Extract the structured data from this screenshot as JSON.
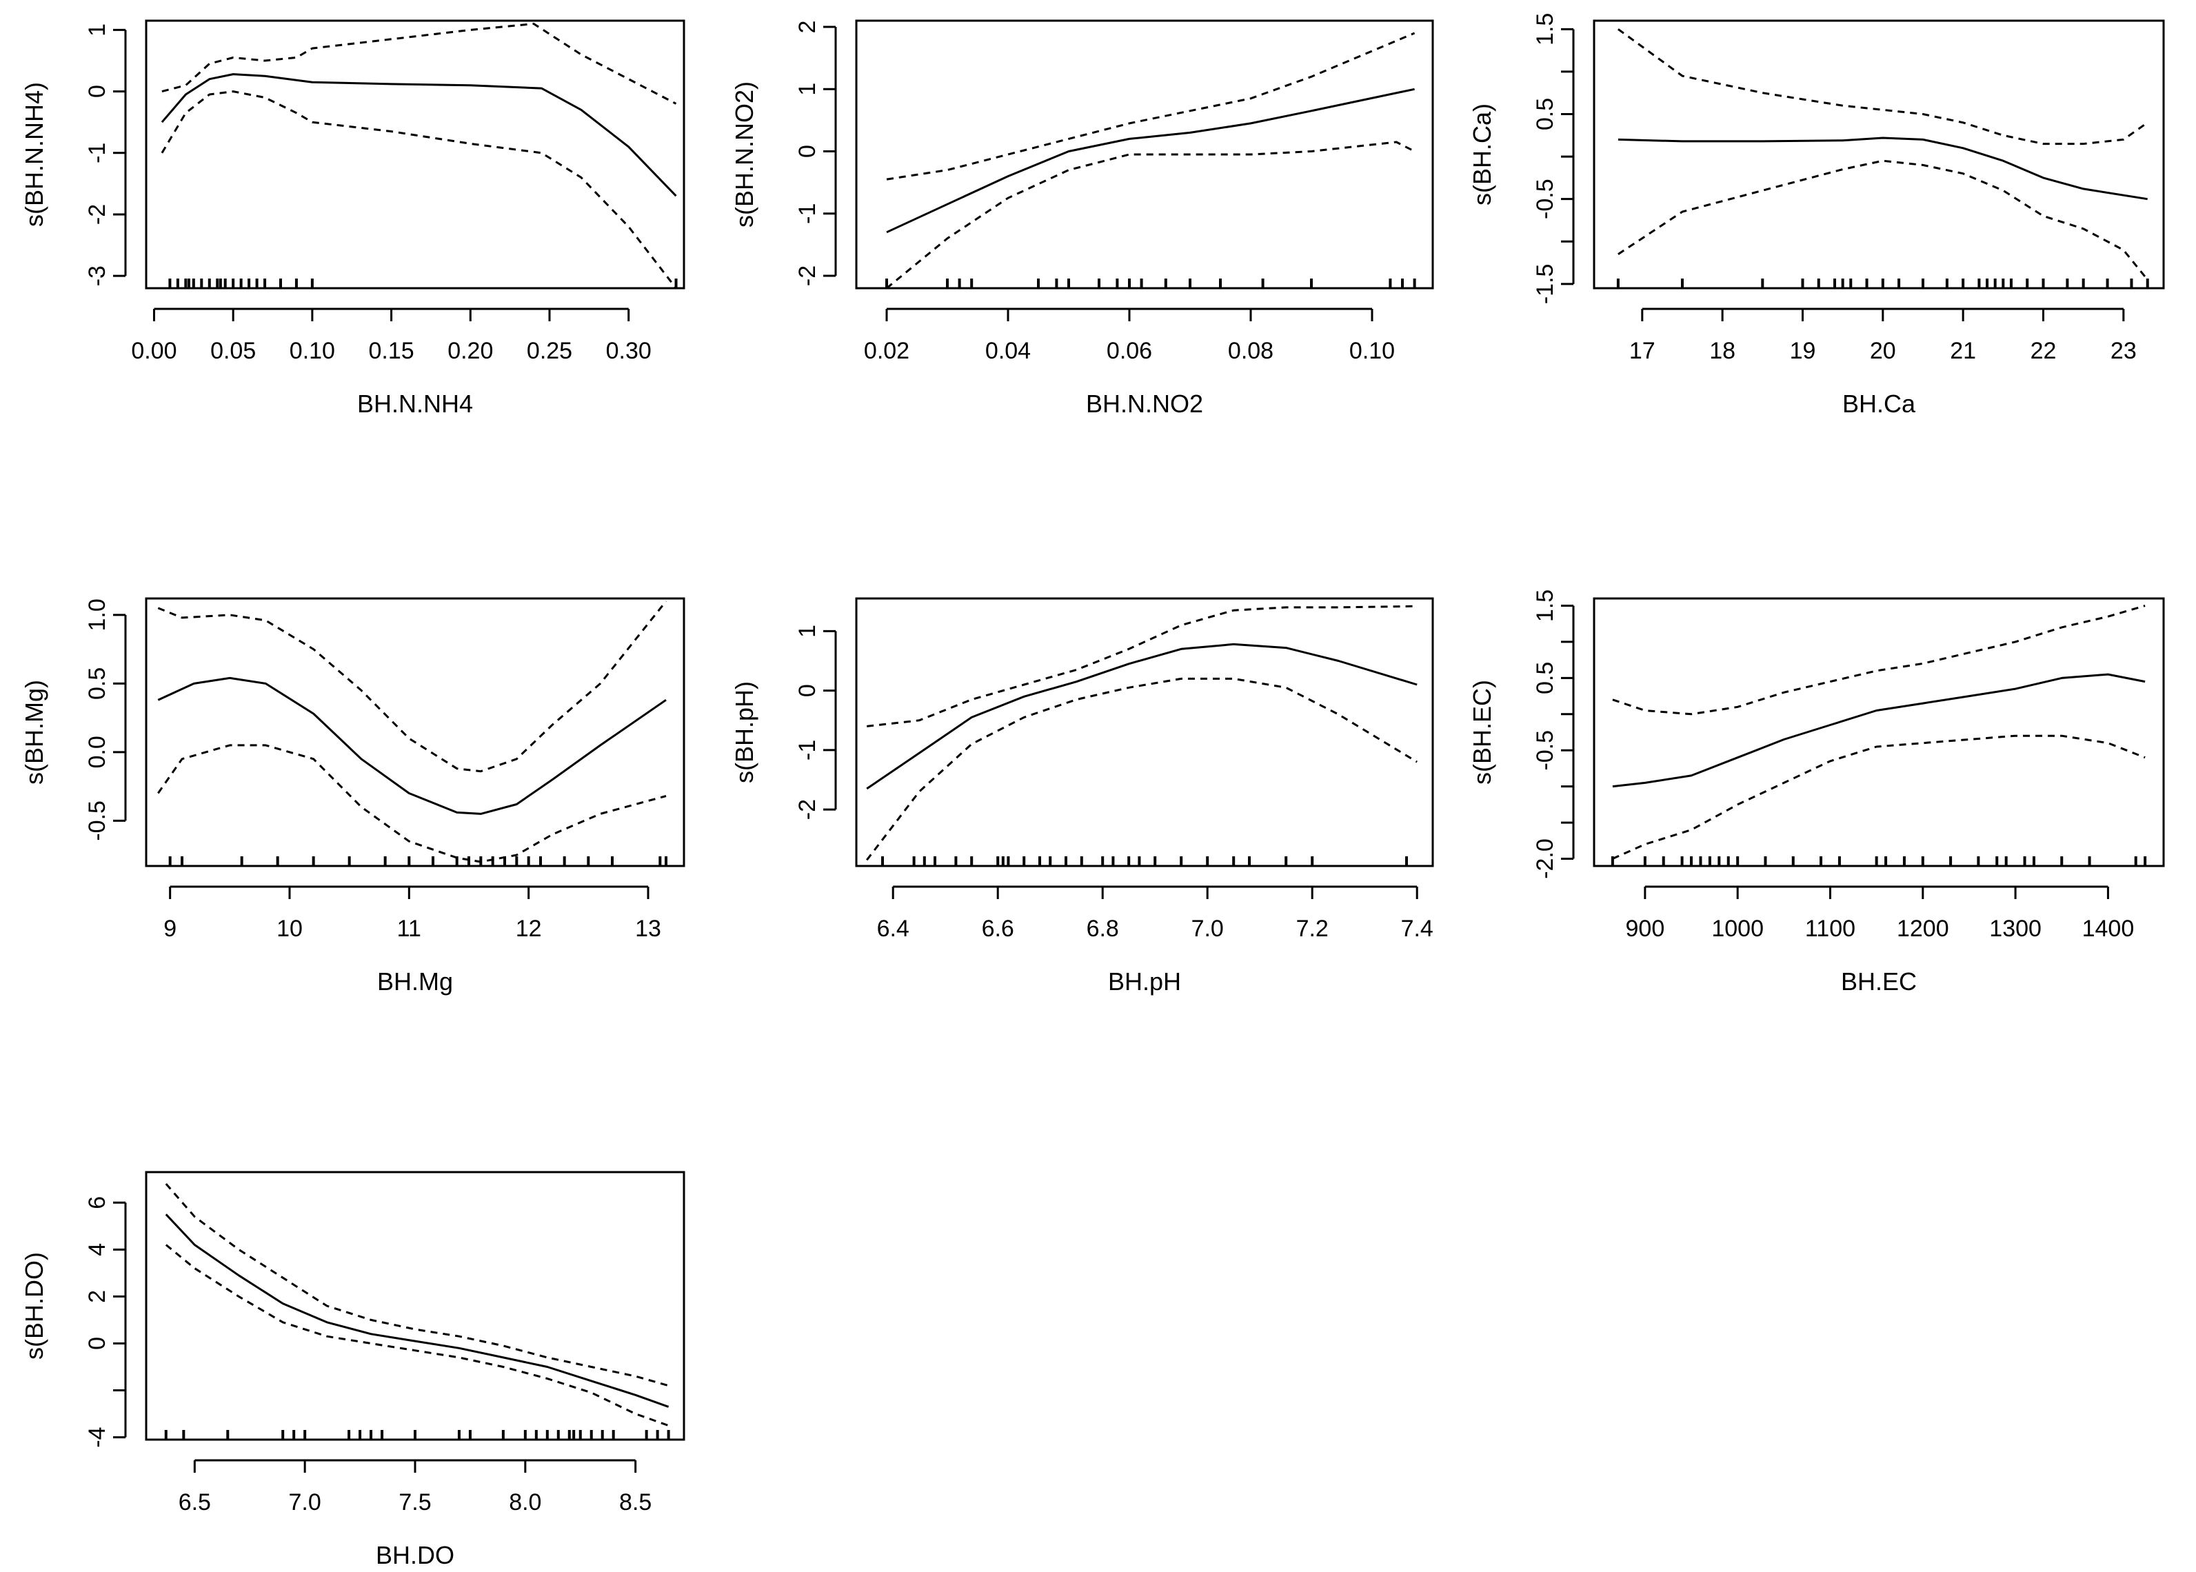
{
  "chart_data": [
    {
      "type": "line",
      "xlabel": "BH.N.NH4",
      "ylabel": "s(BH.N.NH4)",
      "xlim": [
        -0.005,
        0.335
      ],
      "ylim": [
        -3.2,
        1.15
      ],
      "xticks": [
        0.0,
        0.05,
        0.1,
        0.15,
        0.2,
        0.25,
        0.3
      ],
      "xtick_labels": [
        "0.00",
        "0.05",
        "0.10",
        "0.15",
        "0.20",
        "0.25",
        "0.30"
      ],
      "yticks": [
        -3,
        -2,
        -1,
        0,
        1
      ],
      "ytick_labels": [
        "-3",
        "-2",
        "-1",
        "0",
        "1"
      ],
      "series": [
        {
          "name": "fit",
          "style": "solid",
          "x": [
            0.005,
            0.02,
            0.035,
            0.05,
            0.07,
            0.1,
            0.15,
            0.2,
            0.245,
            0.27,
            0.3,
            0.33
          ],
          "y": [
            -0.5,
            -0.05,
            0.2,
            0.28,
            0.25,
            0.15,
            0.12,
            0.1,
            0.05,
            -0.3,
            -0.9,
            -1.7
          ]
        },
        {
          "name": "upper",
          "style": "dashed",
          "x": [
            0.005,
            0.02,
            0.035,
            0.05,
            0.07,
            0.09,
            0.1,
            0.15,
            0.2,
            0.24,
            0.27,
            0.3,
            0.33
          ],
          "y": [
            0.0,
            0.1,
            0.45,
            0.55,
            0.5,
            0.55,
            0.7,
            0.85,
            1.0,
            1.1,
            0.6,
            0.2,
            -0.2
          ]
        },
        {
          "name": "lower",
          "style": "dashed",
          "x": [
            0.005,
            0.02,
            0.035,
            0.05,
            0.07,
            0.09,
            0.1,
            0.15,
            0.2,
            0.245,
            0.27,
            0.3,
            0.33
          ],
          "y": [
            -1.0,
            -0.35,
            -0.05,
            0.0,
            -0.1,
            -0.35,
            -0.5,
            -0.65,
            -0.85,
            -1.0,
            -1.4,
            -2.2,
            -3.2
          ]
        }
      ],
      "rug": [
        0.01,
        0.015,
        0.02,
        0.022,
        0.025,
        0.03,
        0.035,
        0.04,
        0.042,
        0.045,
        0.05,
        0.055,
        0.06,
        0.065,
        0.07,
        0.08,
        0.09,
        0.1,
        0.33
      ]
    },
    {
      "type": "line",
      "xlabel": "BH.N.NO2",
      "ylabel": "s(BH.N.NO2)",
      "xlim": [
        0.015,
        0.11
      ],
      "ylim": [
        -2.2,
        2.1
      ],
      "xticks": [
        0.02,
        0.04,
        0.06,
        0.08,
        0.1
      ],
      "xtick_labels": [
        "0.02",
        "0.04",
        "0.06",
        "0.08",
        "0.10"
      ],
      "yticks": [
        -2,
        -1,
        0,
        1,
        2
      ],
      "ytick_labels": [
        "-2",
        "-1",
        "0",
        "1",
        "2"
      ],
      "series": [
        {
          "name": "fit",
          "style": "solid",
          "x": [
            0.02,
            0.03,
            0.04,
            0.05,
            0.06,
            0.07,
            0.08,
            0.09,
            0.107
          ],
          "y": [
            -1.3,
            -0.85,
            -0.4,
            0.0,
            0.2,
            0.3,
            0.45,
            0.65,
            1.0
          ]
        },
        {
          "name": "upper",
          "style": "dashed",
          "x": [
            0.02,
            0.03,
            0.04,
            0.05,
            0.06,
            0.07,
            0.08,
            0.09,
            0.107
          ],
          "y": [
            -0.45,
            -0.3,
            -0.05,
            0.2,
            0.45,
            0.65,
            0.85,
            1.2,
            1.9
          ]
        },
        {
          "name": "lower",
          "style": "dashed",
          "x": [
            0.02,
            0.03,
            0.04,
            0.05,
            0.06,
            0.07,
            0.08,
            0.09,
            0.104,
            0.107
          ],
          "y": [
            -2.2,
            -1.4,
            -0.75,
            -0.3,
            -0.05,
            -0.05,
            -0.05,
            0.0,
            0.15,
            0.0
          ]
        }
      ],
      "rug": [
        0.02,
        0.03,
        0.032,
        0.034,
        0.045,
        0.048,
        0.05,
        0.055,
        0.058,
        0.06,
        0.062,
        0.066,
        0.07,
        0.075,
        0.082,
        0.09,
        0.103,
        0.105,
        0.107
      ]
    },
    {
      "type": "line",
      "xlabel": "BH.Ca",
      "ylabel": "s(BH.Ca)",
      "xlim": [
        16.4,
        23.5
      ],
      "ylim": [
        -1.55,
        1.6
      ],
      "xticks": [
        17,
        18,
        19,
        20,
        21,
        22,
        23
      ],
      "xtick_labels": [
        "17",
        "18",
        "19",
        "20",
        "21",
        "22",
        "23"
      ],
      "yticks": [
        -1.5,
        -1.0,
        -0.5,
        0.0,
        0.5,
        1.0,
        1.5
      ],
      "ytick_labels": [
        "-1.5",
        "",
        "-0.5",
        "",
        "0.5",
        "",
        "1.5"
      ],
      "series": [
        {
          "name": "fit",
          "style": "solid",
          "x": [
            16.7,
            17.5,
            18.5,
            19.5,
            20.0,
            20.5,
            21.0,
            21.5,
            22.0,
            22.5,
            23.3
          ],
          "y": [
            0.2,
            0.18,
            0.18,
            0.19,
            0.22,
            0.2,
            0.1,
            -0.05,
            -0.25,
            -0.38,
            -0.5
          ]
        },
        {
          "name": "upper",
          "style": "dashed",
          "x": [
            16.7,
            17.5,
            18.5,
            19.5,
            20.0,
            20.5,
            21.0,
            21.5,
            22.0,
            22.5,
            23.0,
            23.3
          ],
          "y": [
            1.5,
            0.95,
            0.75,
            0.6,
            0.55,
            0.5,
            0.4,
            0.25,
            0.15,
            0.15,
            0.2,
            0.4
          ]
        },
        {
          "name": "lower",
          "style": "dashed",
          "x": [
            16.7,
            17.5,
            18.5,
            19.5,
            20.0,
            20.5,
            21.0,
            21.5,
            22.0,
            22.5,
            23.0,
            23.3
          ],
          "y": [
            -1.15,
            -0.65,
            -0.4,
            -0.15,
            -0.05,
            -0.1,
            -0.2,
            -0.4,
            -0.7,
            -0.85,
            -1.1,
            -1.45
          ]
        }
      ],
      "rug": [
        16.7,
        17.5,
        18.5,
        19.0,
        19.2,
        19.4,
        19.5,
        19.6,
        19.8,
        20.0,
        20.2,
        20.5,
        20.8,
        21.0,
        21.2,
        21.3,
        21.4,
        21.5,
        21.6,
        21.8,
        22.0,
        22.3,
        22.5,
        22.8,
        23.1,
        23.3
      ]
    },
    {
      "type": "line",
      "xlabel": "BH.Mg",
      "ylabel": "s(BH.Mg)",
      "xlim": [
        8.8,
        13.3
      ],
      "ylim": [
        -0.83,
        1.12
      ],
      "xticks": [
        9,
        10,
        11,
        12,
        13
      ],
      "xtick_labels": [
        "9",
        "10",
        "11",
        "12",
        "13"
      ],
      "yticks": [
        -0.5,
        0.0,
        0.5,
        1.0
      ],
      "ytick_labels": [
        "-0.5",
        "0.0",
        "0.5",
        "1.0"
      ],
      "series": [
        {
          "name": "fit",
          "style": "solid",
          "x": [
            8.9,
            9.2,
            9.5,
            9.8,
            10.2,
            10.6,
            11.0,
            11.4,
            11.6,
            11.9,
            12.2,
            12.6,
            13.15
          ],
          "y": [
            0.38,
            0.5,
            0.54,
            0.5,
            0.28,
            -0.05,
            -0.3,
            -0.44,
            -0.45,
            -0.38,
            -0.2,
            0.05,
            0.38
          ]
        },
        {
          "name": "upper",
          "style": "dashed",
          "x": [
            8.9,
            9.1,
            9.5,
            9.8,
            10.2,
            10.6,
            11.0,
            11.4,
            11.6,
            11.9,
            12.2,
            12.6,
            13.15
          ],
          "y": [
            1.05,
            0.98,
            1.0,
            0.96,
            0.75,
            0.45,
            0.1,
            -0.12,
            -0.14,
            -0.05,
            0.2,
            0.5,
            1.1
          ]
        },
        {
          "name": "lower",
          "style": "dashed",
          "x": [
            8.9,
            9.1,
            9.5,
            9.8,
            10.2,
            10.6,
            11.0,
            11.4,
            11.6,
            11.9,
            12.2,
            12.6,
            13.15
          ],
          "y": [
            -0.3,
            -0.05,
            0.05,
            0.05,
            -0.05,
            -0.4,
            -0.65,
            -0.77,
            -0.8,
            -0.75,
            -0.6,
            -0.45,
            -0.32
          ]
        }
      ],
      "rug": [
        9.0,
        9.1,
        9.6,
        9.9,
        10.2,
        10.5,
        10.8,
        11.0,
        11.2,
        11.4,
        11.5,
        11.6,
        11.7,
        11.8,
        11.9,
        12.0,
        12.1,
        12.3,
        12.5,
        12.7,
        13.1,
        13.15
      ]
    },
    {
      "type": "line",
      "xlabel": "BH.pH",
      "ylabel": "s(BH.pH)",
      "xlim": [
        6.33,
        7.43
      ],
      "ylim": [
        -2.95,
        1.55
      ],
      "xticks": [
        6.4,
        6.6,
        6.8,
        7.0,
        7.2,
        7.4
      ],
      "xtick_labels": [
        "6.4",
        "6.6",
        "6.8",
        "7.0",
        "7.2",
        "7.4"
      ],
      "yticks": [
        -2,
        -1,
        0,
        1
      ],
      "ytick_labels": [
        "-2",
        "-1",
        "0",
        "1"
      ],
      "series": [
        {
          "name": "fit",
          "style": "solid",
          "x": [
            6.35,
            6.45,
            6.55,
            6.65,
            6.75,
            6.85,
            6.95,
            7.05,
            7.15,
            7.25,
            7.4
          ],
          "y": [
            -1.65,
            -1.05,
            -0.45,
            -0.1,
            0.15,
            0.45,
            0.7,
            0.78,
            0.72,
            0.5,
            0.1
          ]
        },
        {
          "name": "upper",
          "style": "dashed",
          "x": [
            6.35,
            6.45,
            6.55,
            6.65,
            6.75,
            6.85,
            6.95,
            7.05,
            7.15,
            7.25,
            7.4
          ],
          "y": [
            -0.6,
            -0.5,
            -0.15,
            0.1,
            0.35,
            0.7,
            1.1,
            1.35,
            1.4,
            1.4,
            1.42
          ]
        },
        {
          "name": "lower",
          "style": "dashed",
          "x": [
            6.35,
            6.45,
            6.55,
            6.65,
            6.75,
            6.85,
            6.95,
            7.05,
            7.15,
            7.25,
            7.4
          ],
          "y": [
            -2.85,
            -1.7,
            -0.9,
            -0.45,
            -0.15,
            0.05,
            0.2,
            0.2,
            0.05,
            -0.4,
            -1.2
          ]
        }
      ],
      "rug": [
        6.38,
        6.44,
        6.46,
        6.48,
        6.52,
        6.55,
        6.6,
        6.61,
        6.62,
        6.65,
        6.68,
        6.7,
        6.73,
        6.76,
        6.8,
        6.82,
        6.85,
        6.87,
        6.9,
        6.95,
        7.0,
        7.05,
        7.08,
        7.15,
        7.2,
        7.38
      ]
    },
    {
      "type": "line",
      "xlabel": "BH.EC",
      "ylabel": "s(BH.EC)",
      "xlim": [
        845,
        1460
      ],
      "ylim": [
        -2.1,
        1.6
      ],
      "xticks": [
        900,
        1000,
        1100,
        1200,
        1300,
        1400
      ],
      "xtick_labels": [
        "900",
        "1000",
        "1100",
        "1200",
        "1300",
        "1400"
      ],
      "yticks": [
        -2.0,
        -1.5,
        -1.0,
        -0.5,
        0.0,
        0.5,
        1.0,
        1.5
      ],
      "ytick_labels": [
        "-2.0",
        "",
        "",
        "-0.5",
        "",
        "0.5",
        "",
        "1.5"
      ],
      "series": [
        {
          "name": "fit",
          "style": "solid",
          "x": [
            865,
            900,
            950,
            1000,
            1050,
            1100,
            1150,
            1200,
            1250,
            1300,
            1350,
            1400,
            1440
          ],
          "y": [
            -1.0,
            -0.95,
            -0.85,
            -0.6,
            -0.35,
            -0.15,
            0.05,
            0.15,
            0.25,
            0.35,
            0.5,
            0.55,
            0.45
          ]
        },
        {
          "name": "upper",
          "style": "dashed",
          "x": [
            865,
            900,
            950,
            1000,
            1050,
            1100,
            1150,
            1200,
            1250,
            1300,
            1350,
            1400,
            1440
          ],
          "y": [
            0.2,
            0.05,
            0.0,
            0.1,
            0.3,
            0.45,
            0.6,
            0.7,
            0.85,
            1.0,
            1.2,
            1.35,
            1.5
          ]
        },
        {
          "name": "lower",
          "style": "dashed",
          "x": [
            865,
            900,
            950,
            1000,
            1050,
            1100,
            1150,
            1200,
            1250,
            1300,
            1350,
            1400,
            1440
          ],
          "y": [
            -2.0,
            -1.8,
            -1.6,
            -1.25,
            -0.95,
            -0.65,
            -0.45,
            -0.4,
            -0.35,
            -0.3,
            -0.3,
            -0.4,
            -0.6
          ]
        }
      ],
      "rug": [
        865,
        900,
        920,
        940,
        950,
        960,
        970,
        980,
        990,
        1000,
        1030,
        1060,
        1090,
        1110,
        1150,
        1160,
        1180,
        1200,
        1230,
        1260,
        1280,
        1290,
        1310,
        1320,
        1350,
        1380,
        1430,
        1440
      ]
    },
    {
      "type": "line",
      "xlabel": "BH.DO",
      "ylabel": "s(BH.DO)",
      "xlim": [
        6.28,
        8.72
      ],
      "ylim": [
        -4.1,
        7.3
      ],
      "xticks": [
        6.5,
        7.0,
        7.5,
        8.0,
        8.5
      ],
      "xtick_labels": [
        "6.5",
        "7.0",
        "7.5",
        "8.0",
        "8.5"
      ],
      "yticks": [
        -4,
        -2,
        0,
        2,
        4,
        6
      ],
      "ytick_labels": [
        "-4",
        "",
        "0",
        "2",
        "4",
        "6"
      ],
      "series": [
        {
          "name": "fit",
          "style": "solid",
          "x": [
            6.37,
            6.5,
            6.7,
            6.9,
            7.1,
            7.3,
            7.5,
            7.7,
            7.9,
            8.1,
            8.3,
            8.5,
            8.65
          ],
          "y": [
            5.5,
            4.2,
            2.9,
            1.7,
            0.9,
            0.4,
            0.1,
            -0.2,
            -0.6,
            -1.0,
            -1.6,
            -2.2,
            -2.7
          ]
        },
        {
          "name": "upper",
          "style": "dashed",
          "x": [
            6.37,
            6.5,
            6.7,
            6.9,
            7.1,
            7.3,
            7.5,
            7.7,
            7.9,
            8.1,
            8.3,
            8.5,
            8.65
          ],
          "y": [
            6.8,
            5.4,
            4.0,
            2.8,
            1.6,
            1.0,
            0.6,
            0.3,
            -0.1,
            -0.6,
            -1.0,
            -1.4,
            -1.8
          ]
        },
        {
          "name": "lower",
          "style": "dashed",
          "x": [
            6.37,
            6.5,
            6.7,
            6.9,
            7.1,
            7.3,
            7.5,
            7.7,
            7.9,
            8.1,
            8.3,
            8.5,
            8.65
          ],
          "y": [
            4.2,
            3.2,
            2.0,
            0.9,
            0.3,
            0.0,
            -0.3,
            -0.6,
            -1.0,
            -1.5,
            -2.1,
            -3.0,
            -3.5
          ]
        }
      ],
      "rug": [
        6.37,
        6.45,
        6.65,
        6.9,
        6.95,
        7.0,
        7.2,
        7.25,
        7.3,
        7.35,
        7.5,
        7.7,
        7.75,
        7.9,
        8.0,
        8.05,
        8.1,
        8.15,
        8.2,
        8.22,
        8.25,
        8.3,
        8.35,
        8.4,
        8.55,
        8.6,
        8.65
      ]
    }
  ]
}
